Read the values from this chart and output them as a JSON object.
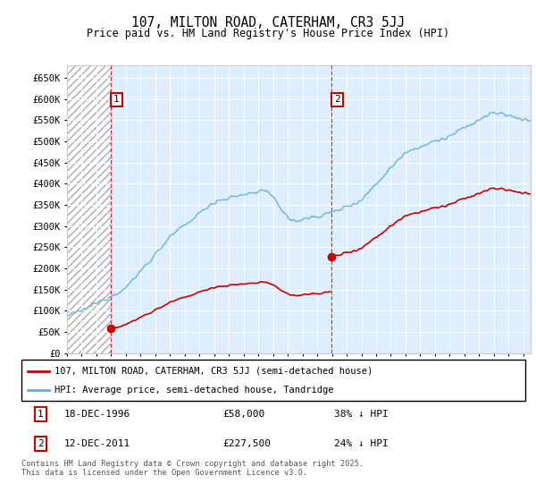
{
  "title": "107, MILTON ROAD, CATERHAM, CR3 5JJ",
  "subtitle": "Price paid vs. HM Land Registry's House Price Index (HPI)",
  "hpi_color": "#6baed6",
  "price_color": "#cc0000",
  "background_color": "#ddeeff",
  "plot_bg": "#ddeeff",
  "ylim": [
    0,
    680000
  ],
  "yticks": [
    0,
    50000,
    100000,
    150000,
    200000,
    250000,
    300000,
    350000,
    400000,
    450000,
    500000,
    550000,
    600000,
    650000
  ],
  "ytick_labels": [
    "£0",
    "£50K",
    "£100K",
    "£150K",
    "£200K",
    "£250K",
    "£300K",
    "£350K",
    "£400K",
    "£450K",
    "£500K",
    "£550K",
    "£600K",
    "£650K"
  ],
  "xmin": 1994.0,
  "xmax": 2025.5,
  "sale1_x": 1996.96,
  "sale1_y": 58000,
  "sale2_x": 2011.96,
  "sale2_y": 227500,
  "legend_line1": "107, MILTON ROAD, CATERHAM, CR3 5JJ (semi-detached house)",
  "legend_line2": "HPI: Average price, semi-detached house, Tandridge",
  "annotation1_date": "18-DEC-1996",
  "annotation1_price": "£58,000",
  "annotation1_hpi": "38% ↓ HPI",
  "annotation2_date": "12-DEC-2011",
  "annotation2_price": "£227,500",
  "annotation2_hpi": "24% ↓ HPI",
  "footer": "Contains HM Land Registry data © Crown copyright and database right 2025.\nThis data is licensed under the Open Government Licence v3.0."
}
